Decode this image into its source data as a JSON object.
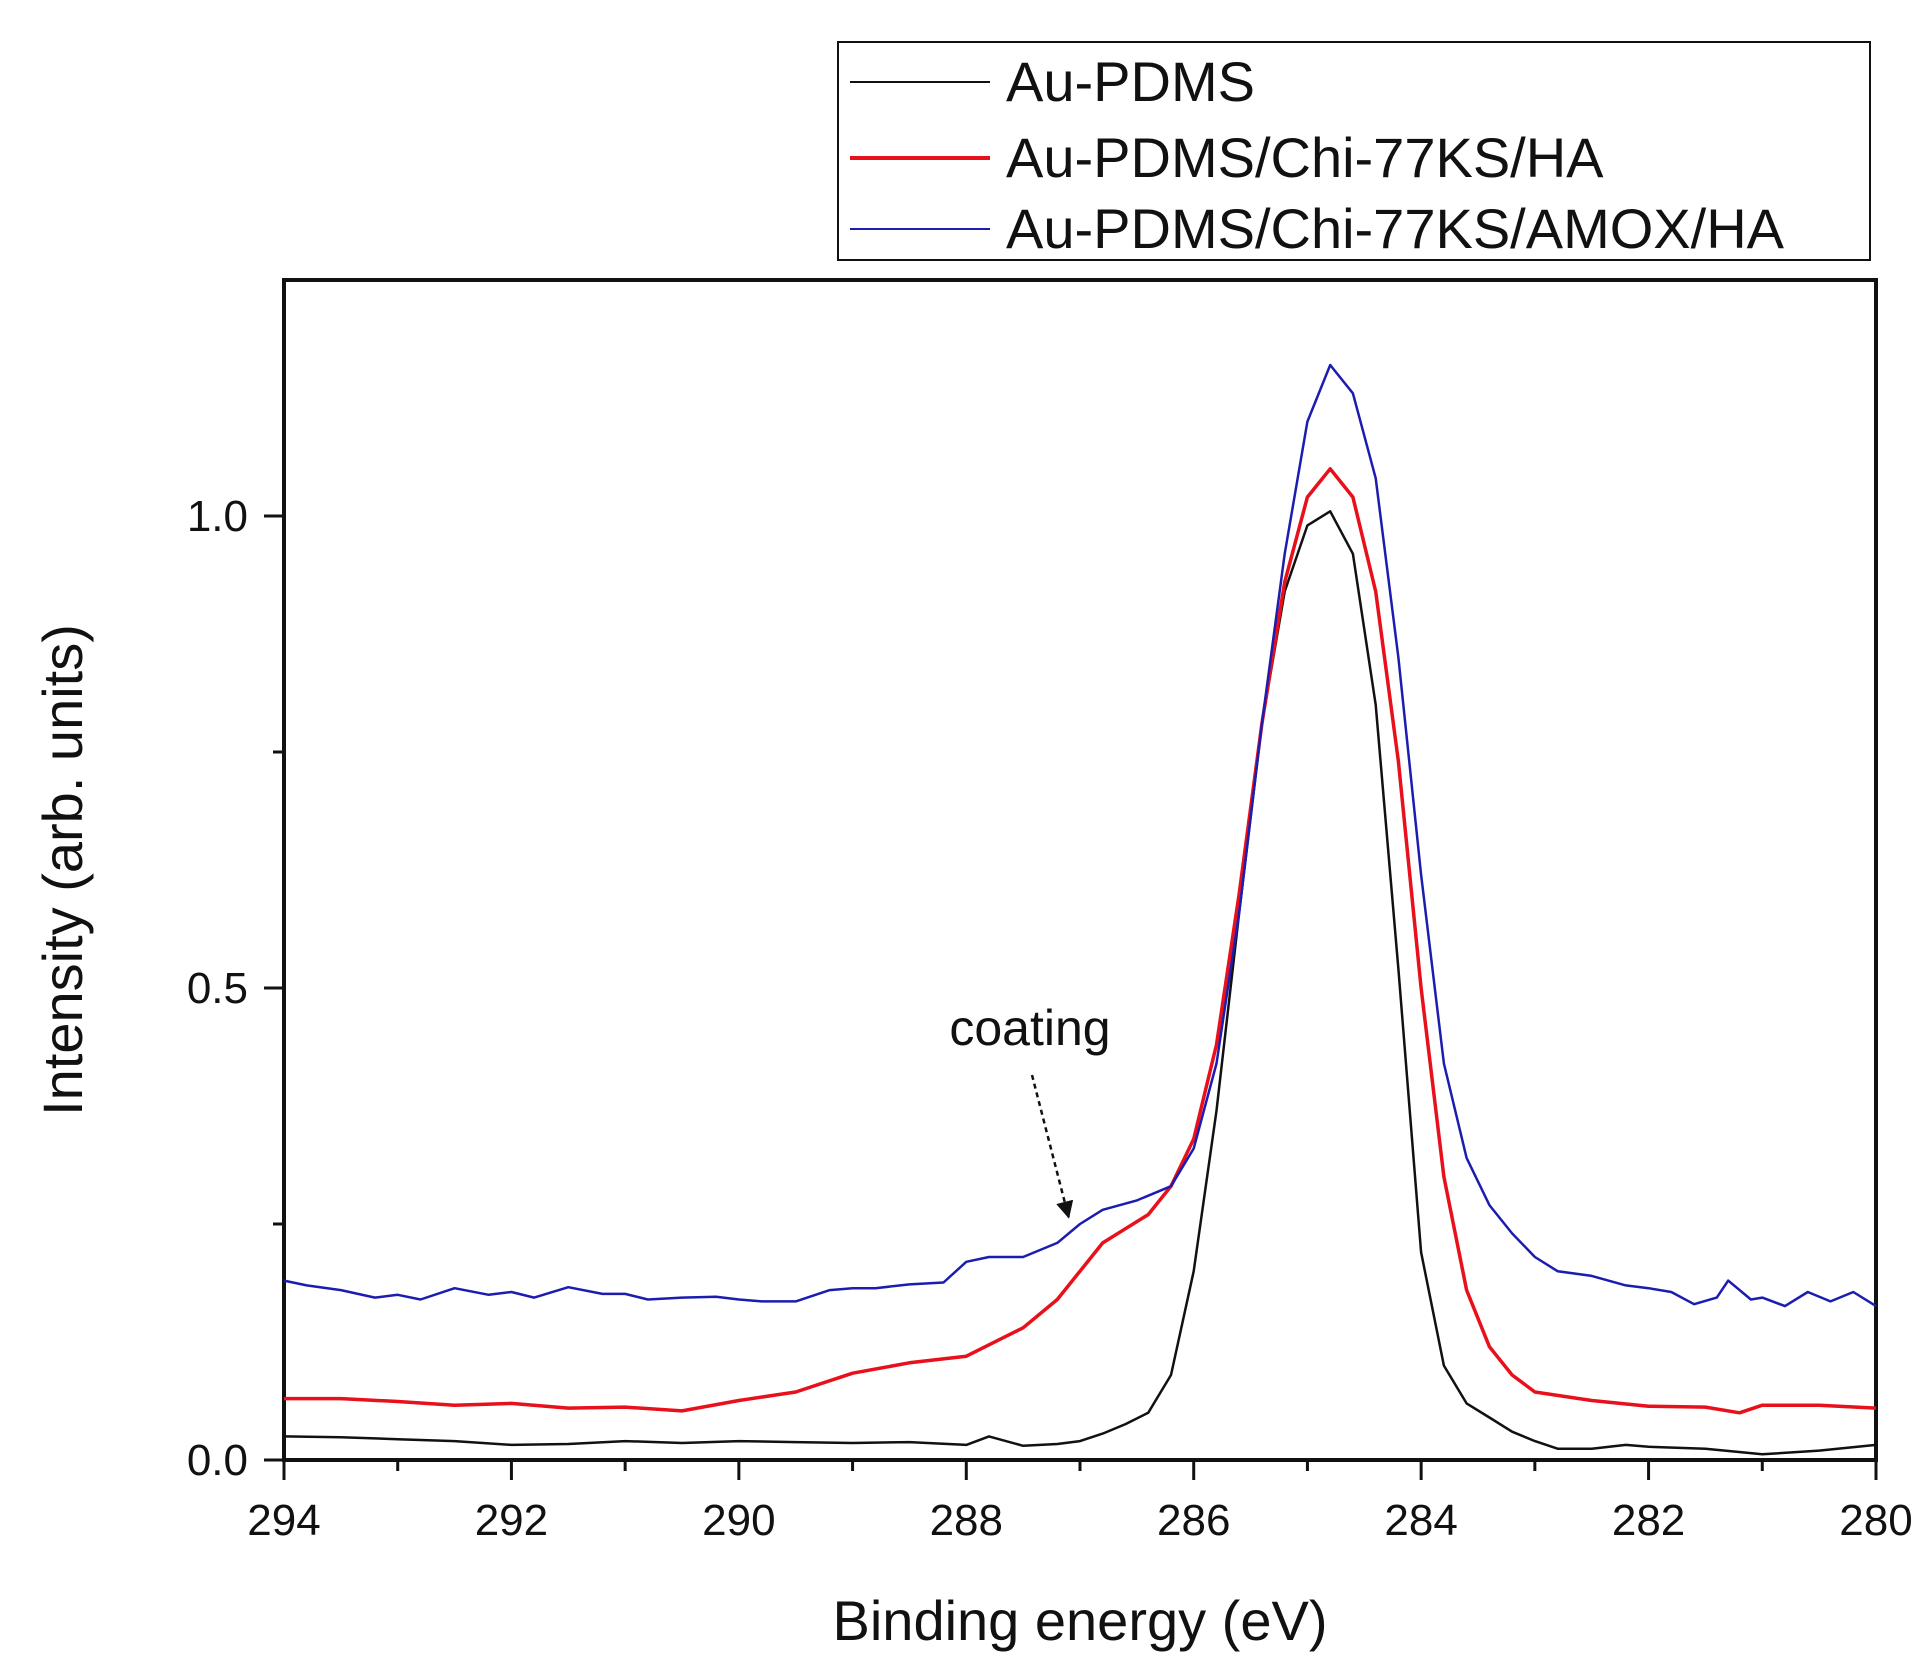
{
  "chart_data": {
    "type": "line",
    "title": "",
    "xlabel": "Binding energy (eV)",
    "ylabel": "Intensity (arb. units)",
    "xlim": [
      294,
      280
    ],
    "ylim": [
      0,
      1.25
    ],
    "x_ticks": [
      {
        "value": 294,
        "label": "294"
      },
      {
        "value": 292,
        "label": "292"
      },
      {
        "value": 290,
        "label": "290"
      },
      {
        "value": 288,
        "label": "288"
      },
      {
        "value": 286,
        "label": "286"
      },
      {
        "value": 284,
        "label": "284"
      },
      {
        "value": 282,
        "label": "282"
      },
      {
        "value": 280,
        "label": "280"
      }
    ],
    "y_ticks": [
      {
        "value": 0.0,
        "label": "0.0"
      },
      {
        "value": 0.5,
        "label": "0.5"
      },
      {
        "value": 1.0,
        "label": "1.0"
      }
    ],
    "x_minor_ticks": [
      293,
      291,
      289,
      287,
      285,
      283,
      281
    ],
    "y_minor_ticks": [
      0.25,
      0.75
    ],
    "legend_position": "top-right",
    "series": [
      {
        "name": "Au-PDMS",
        "color": "#111111",
        "points": [
          [
            294,
            0.025
          ],
          [
            293.5,
            0.024
          ],
          [
            293,
            0.022
          ],
          [
            292.5,
            0.02
          ],
          [
            292,
            0.016
          ],
          [
            291.5,
            0.017
          ],
          [
            291,
            0.02
          ],
          [
            290.5,
            0.018
          ],
          [
            290,
            0.02
          ],
          [
            289.5,
            0.019
          ],
          [
            289,
            0.018
          ],
          [
            288.5,
            0.019
          ],
          [
            288,
            0.016
          ],
          [
            287.8,
            0.025
          ],
          [
            287.5,
            0.015
          ],
          [
            287.2,
            0.017
          ],
          [
            287,
            0.02
          ],
          [
            286.8,
            0.028
          ],
          [
            286.6,
            0.038
          ],
          [
            286.4,
            0.05
          ],
          [
            286.2,
            0.09
          ],
          [
            286.0,
            0.2
          ],
          [
            285.8,
            0.37
          ],
          [
            285.6,
            0.58
          ],
          [
            285.4,
            0.78
          ],
          [
            285.2,
            0.92
          ],
          [
            285.0,
            0.99
          ],
          [
            284.8,
            1.005
          ],
          [
            284.6,
            0.96
          ],
          [
            284.4,
            0.8
          ],
          [
            284.2,
            0.52
          ],
          [
            284.0,
            0.22
          ],
          [
            283.8,
            0.1
          ],
          [
            283.6,
            0.06
          ],
          [
            283.4,
            0.045
          ],
          [
            283.2,
            0.03
          ],
          [
            283.0,
            0.02
          ],
          [
            282.8,
            0.012
          ],
          [
            282.5,
            0.012
          ],
          [
            282.2,
            0.016
          ],
          [
            282,
            0.014
          ],
          [
            281.5,
            0.012
          ],
          [
            281,
            0.006
          ],
          [
            280.5,
            0.01
          ],
          [
            280,
            0.016
          ]
        ]
      },
      {
        "name": "Au-PDMS/Chi-77KS/HA",
        "color": "#e8101a",
        "points": [
          [
            294,
            0.065
          ],
          [
            293.5,
            0.065
          ],
          [
            293,
            0.062
          ],
          [
            292.5,
            0.058
          ],
          [
            292,
            0.06
          ],
          [
            291.5,
            0.055
          ],
          [
            291,
            0.056
          ],
          [
            290.5,
            0.052
          ],
          [
            290,
            0.063
          ],
          [
            289.5,
            0.072
          ],
          [
            289,
            0.092
          ],
          [
            288.5,
            0.103
          ],
          [
            288,
            0.11
          ],
          [
            287.5,
            0.14
          ],
          [
            287.2,
            0.17
          ],
          [
            287.0,
            0.2
          ],
          [
            286.8,
            0.23
          ],
          [
            286.6,
            0.245
          ],
          [
            286.4,
            0.26
          ],
          [
            286.2,
            0.29
          ],
          [
            286.0,
            0.34
          ],
          [
            285.8,
            0.44
          ],
          [
            285.6,
            0.6
          ],
          [
            285.4,
            0.78
          ],
          [
            285.2,
            0.93
          ],
          [
            285.0,
            1.02
          ],
          [
            284.8,
            1.05
          ],
          [
            284.6,
            1.02
          ],
          [
            284.4,
            0.92
          ],
          [
            284.2,
            0.74
          ],
          [
            284.0,
            0.5
          ],
          [
            283.8,
            0.3
          ],
          [
            283.6,
            0.18
          ],
          [
            283.4,
            0.12
          ],
          [
            283.2,
            0.09
          ],
          [
            283.0,
            0.072
          ],
          [
            282.5,
            0.063
          ],
          [
            282,
            0.057
          ],
          [
            281.5,
            0.056
          ],
          [
            281.2,
            0.05
          ],
          [
            281,
            0.058
          ],
          [
            280.5,
            0.058
          ],
          [
            280,
            0.055
          ]
        ]
      },
      {
        "name": "Au-PDMS/Chi-77KS/AMOX/HA",
        "color": "#1c1cb0",
        "points": [
          [
            294,
            0.19
          ],
          [
            293.8,
            0.185
          ],
          [
            293.5,
            0.18
          ],
          [
            293.2,
            0.172
          ],
          [
            293,
            0.175
          ],
          [
            292.8,
            0.17
          ],
          [
            292.5,
            0.182
          ],
          [
            292.2,
            0.175
          ],
          [
            292,
            0.178
          ],
          [
            291.8,
            0.172
          ],
          [
            291.5,
            0.183
          ],
          [
            291.2,
            0.176
          ],
          [
            291,
            0.176
          ],
          [
            290.8,
            0.17
          ],
          [
            290.5,
            0.172
          ],
          [
            290.2,
            0.173
          ],
          [
            290,
            0.17
          ],
          [
            289.8,
            0.168
          ],
          [
            289.5,
            0.168
          ],
          [
            289.2,
            0.18
          ],
          [
            289,
            0.182
          ],
          [
            288.8,
            0.182
          ],
          [
            288.5,
            0.186
          ],
          [
            288.2,
            0.188
          ],
          [
            288,
            0.21
          ],
          [
            287.8,
            0.215
          ],
          [
            287.5,
            0.215
          ],
          [
            287.2,
            0.23
          ],
          [
            287.0,
            0.25
          ],
          [
            286.8,
            0.265
          ],
          [
            286.5,
            0.275
          ],
          [
            286.2,
            0.29
          ],
          [
            286.0,
            0.33
          ],
          [
            285.8,
            0.42
          ],
          [
            285.6,
            0.58
          ],
          [
            285.4,
            0.78
          ],
          [
            285.2,
            0.96
          ],
          [
            285.0,
            1.1
          ],
          [
            284.8,
            1.16
          ],
          [
            284.6,
            1.13
          ],
          [
            284.4,
            1.04
          ],
          [
            284.2,
            0.85
          ],
          [
            284.0,
            0.62
          ],
          [
            283.8,
            0.42
          ],
          [
            283.6,
            0.32
          ],
          [
            283.4,
            0.27
          ],
          [
            283.2,
            0.24
          ],
          [
            283.0,
            0.215
          ],
          [
            282.8,
            0.2
          ],
          [
            282.5,
            0.195
          ],
          [
            282.2,
            0.185
          ],
          [
            282,
            0.182
          ],
          [
            281.8,
            0.178
          ],
          [
            281.6,
            0.165
          ],
          [
            281.4,
            0.172
          ],
          [
            281.3,
            0.19
          ],
          [
            281.1,
            0.17
          ],
          [
            281,
            0.172
          ],
          [
            280.8,
            0.163
          ],
          [
            280.6,
            0.178
          ],
          [
            280.4,
            0.168
          ],
          [
            280.2,
            0.178
          ],
          [
            280,
            0.163
          ]
        ]
      }
    ],
    "annotations": [
      {
        "text": "coating",
        "target_x": 287.1,
        "target_y": 0.27
      }
    ]
  }
}
